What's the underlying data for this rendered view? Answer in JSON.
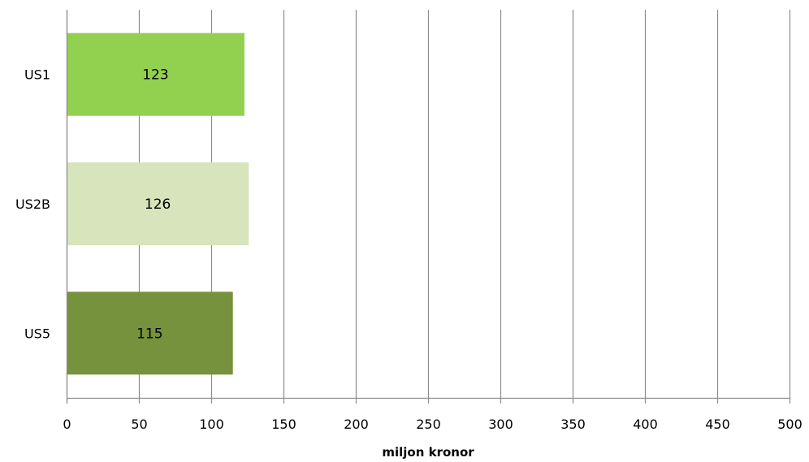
{
  "chart_data": {
    "type": "bar",
    "orientation": "horizontal",
    "categories": [
      "US1",
      "US2B",
      "US5"
    ],
    "values": [
      123,
      126,
      115
    ],
    "data_labels": [
      "123",
      "126",
      "115"
    ],
    "colors": [
      "#92d050",
      "#d8e4bc",
      "#76923c"
    ],
    "xlabel": "miljon kronor",
    "ylabel": "",
    "title": "",
    "xlim": [
      0,
      500
    ],
    "xticks": [
      0,
      50,
      100,
      150,
      200,
      250,
      300,
      350,
      400,
      450,
      500
    ],
    "grid": "vertical",
    "legend": "none"
  }
}
